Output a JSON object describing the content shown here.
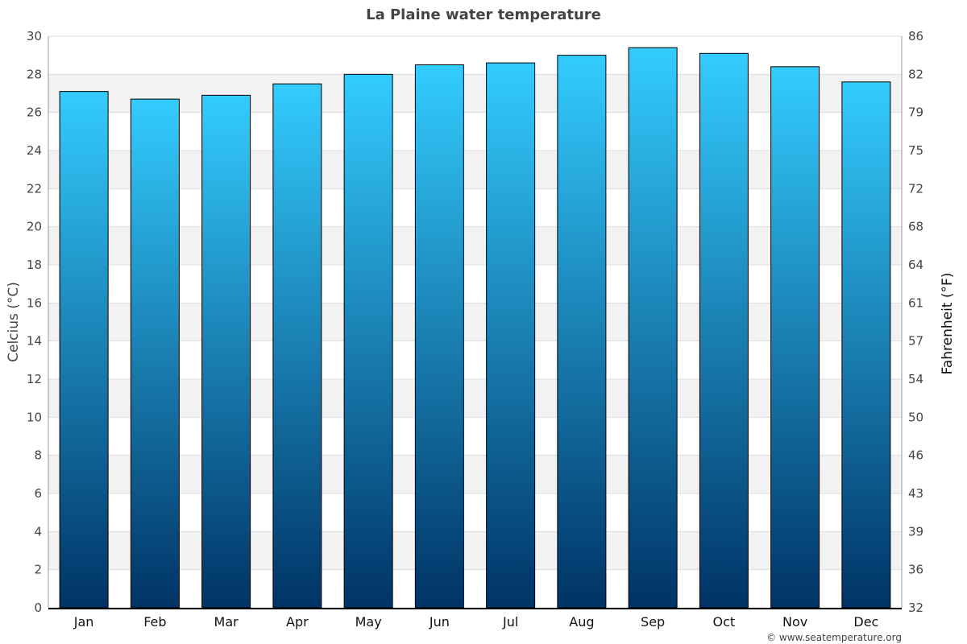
{
  "chart_data": {
    "type": "bar",
    "title": "La Plaine water temperature",
    "ylabel": "Celcius (°C)",
    "ylabel_right": "Fahrenheit (°F)",
    "categories": [
      "Jan",
      "Feb",
      "Mar",
      "Apr",
      "May",
      "Jun",
      "Jul",
      "Aug",
      "Sep",
      "Oct",
      "Nov",
      "Dec"
    ],
    "values": [
      27.1,
      26.7,
      26.9,
      27.5,
      28.0,
      28.5,
      28.6,
      29.0,
      29.4,
      29.1,
      28.4,
      27.6
    ],
    "ylim": [
      0,
      30
    ],
    "yticks": [
      "0",
      "2",
      "4",
      "6",
      "8",
      "10",
      "12",
      "14",
      "16",
      "18",
      "20",
      "22",
      "24",
      "26",
      "28",
      "30"
    ],
    "yticks_right": [
      "32",
      "36",
      "39",
      "43",
      "46",
      "50",
      "54",
      "57",
      "61",
      "64",
      "68",
      "72",
      "75",
      "79",
      "82",
      "86"
    ],
    "grid": true,
    "legend": "none",
    "colors": {
      "bar_top": "#33ccff",
      "bar_bottom": "#003366",
      "band": "#f2f2f2"
    }
  },
  "credit": "© www.seatemperature.org"
}
